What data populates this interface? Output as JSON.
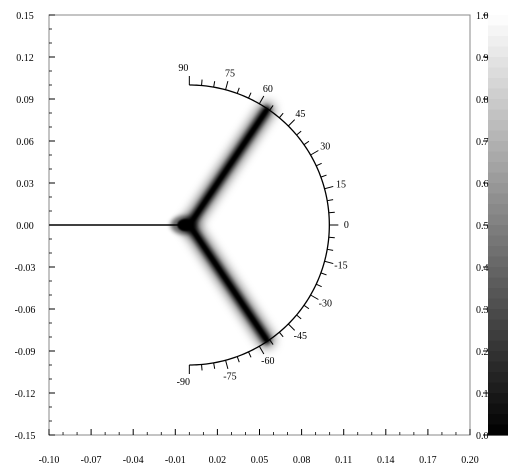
{
  "chart_data": {
    "type": "heatmap",
    "title": "",
    "xlabel": "",
    "ylabel": "",
    "xlim": [
      -0.1,
      0.2
    ],
    "ylim": [
      -0.15,
      0.15
    ],
    "x_ticks": [
      "-0.10",
      "-0.07",
      "-0.04",
      "-0.01",
      "0.02",
      "0.05",
      "0.08",
      "0.11",
      "0.14",
      "0.17",
      "0.20"
    ],
    "y_ticks": [
      "0.15",
      "0.12",
      "0.09",
      "0.06",
      "0.03",
      "0.00",
      "-0.03",
      "-0.06",
      "-0.09",
      "-0.12",
      "-0.15"
    ],
    "colorbar": {
      "range": [
        0.0,
        1.0
      ],
      "ticks": [
        "1.0",
        "0.9",
        "0.8",
        "0.7",
        "0.6",
        "0.5",
        "0.4",
        "0.3",
        "0.2",
        "0.1",
        "0.0"
      ],
      "colormap": "grayscale (0 = black, 1 = white)"
    },
    "field": {
      "background_value": 1.0,
      "incoming_line": {
        "from": [
          -0.1,
          0.0
        ],
        "to": [
          -0.005,
          0.0
        ],
        "value": 0.0
      },
      "junction": [
        0.0,
        0.0
      ],
      "branches": [
        {
          "to": [
            0.055,
            0.082
          ],
          "value": 0.0
        },
        {
          "to": [
            0.055,
            -0.082
          ],
          "value": 0.0
        }
      ]
    },
    "angle_scale": {
      "center": [
        0.0,
        0.0
      ],
      "radius": 0.1,
      "range_deg": [
        -90,
        90
      ],
      "labels": [
        "90",
        "75",
        "60",
        "45",
        "30",
        "15",
        "0",
        "-15",
        "-30",
        "-45",
        "-60",
        "-75",
        "-90"
      ]
    }
  },
  "colors": {
    "background": "#ffffff",
    "ink": "#000000"
  }
}
